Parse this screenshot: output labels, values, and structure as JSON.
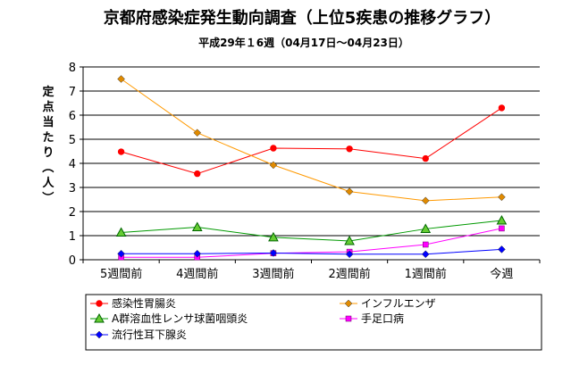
{
  "chart_data": {
    "type": "line",
    "title": "京都府感染症発生動向調査（上位5疾患の推移グラフ）",
    "subtitle": "平成29年１6週（04月17日～04月23日）",
    "ylabel": "定点当たり（人）",
    "xlabel": "",
    "ylim": [
      0,
      8
    ],
    "yticks": [
      "0",
      "1",
      "2",
      "3",
      "4",
      "5",
      "6",
      "7",
      "8"
    ],
    "grid": true,
    "legend_position": "bottom",
    "categories": [
      "5週間前",
      "4週間前",
      "3週間前",
      "2週間前",
      "1週間前",
      "今週"
    ],
    "series": [
      {
        "name": "感染性胃腸炎",
        "color": "#ff0000",
        "marker": "circle",
        "values": [
          4.48,
          3.57,
          4.63,
          4.6,
          4.2,
          6.3
        ]
      },
      {
        "name": "インフルエンザ",
        "color": "#ff9900",
        "marker": "diamond",
        "values": [
          7.5,
          5.27,
          3.93,
          2.83,
          2.45,
          2.6
        ]
      },
      {
        "name": "A群溶血性レンサ球菌咽頭炎",
        "color": "#009900",
        "marker": "triangle",
        "values": [
          1.13,
          1.35,
          0.93,
          0.78,
          1.28,
          1.63
        ]
      },
      {
        "name": "手足口病",
        "color": "#ff00ff",
        "marker": "square",
        "values": [
          0.1,
          0.1,
          0.27,
          0.33,
          0.63,
          1.3
        ]
      },
      {
        "name": "流行性耳下腺炎",
        "color": "#0000ff",
        "marker": "diamond",
        "values": [
          0.25,
          0.25,
          0.28,
          0.23,
          0.23,
          0.43
        ]
      }
    ]
  }
}
